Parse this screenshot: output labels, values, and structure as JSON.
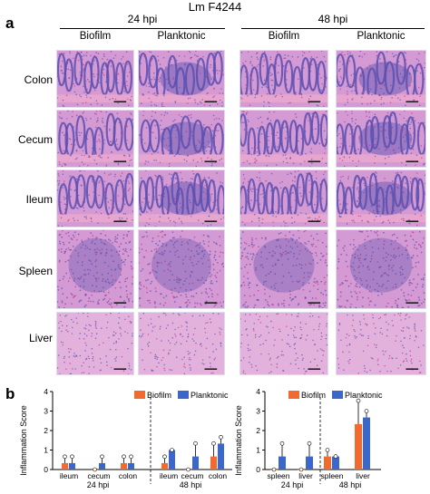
{
  "figure": {
    "strain_title": "Lm F4244",
    "panel_a_letter": "a",
    "panel_b_letter": "b",
    "timepoints": [
      "24 hpi",
      "48 hpi"
    ],
    "conditions": [
      "Biofilm",
      "Planktonic"
    ],
    "tissues": [
      "Colon",
      "Cecum",
      "Ileum",
      "Spleen",
      "Liver"
    ]
  },
  "colors": {
    "biofilm": "#f26a2e",
    "planktonic": "#3a67c9",
    "tissue_pink": "#d49ad3",
    "tissue_purple": "#5a4fb0"
  },
  "chart_data": [
    {
      "type": "bar",
      "ylabel": "Inflammation Score",
      "ylim": [
        0,
        4
      ],
      "yticks": [
        0,
        1,
        2,
        3,
        4
      ],
      "legend": "top",
      "series_names": [
        "Biofilm",
        "Planktonic"
      ],
      "groups": [
        {
          "timepoint": "24 hpi",
          "categories": [
            "ileum",
            "cecum",
            "colon"
          ]
        },
        {
          "timepoint": "48 hpi",
          "categories": [
            "ileum",
            "cecum",
            "colon"
          ]
        }
      ],
      "series": [
        {
          "name": "Biofilm",
          "values": [
            0.33,
            0.0,
            0.33,
            0.33,
            0.0,
            0.67
          ],
          "errors": [
            0.33,
            0,
            0.33,
            0.33,
            0,
            0.67
          ]
        },
        {
          "name": "Planktonic",
          "values": [
            0.33,
            0.33,
            0.33,
            1.0,
            0.67,
            1.33
          ],
          "errors": [
            0.33,
            0.33,
            0.33,
            0,
            0.67,
            0.33
          ]
        }
      ]
    },
    {
      "type": "bar",
      "ylabel": "Inflammation Score",
      "ylim": [
        0,
        4
      ],
      "yticks": [
        0,
        1,
        2,
        3,
        4
      ],
      "legend": "top",
      "series_names": [
        "Biofilm",
        "Planktonic"
      ],
      "groups": [
        {
          "timepoint": "24 hpi",
          "categories": [
            "spleen",
            "liver"
          ]
        },
        {
          "timepoint": "48 hpi",
          "categories": [
            "spleen",
            "liver"
          ]
        }
      ],
      "series": [
        {
          "name": "Biofilm",
          "values": [
            0.0,
            0.0,
            0.67,
            2.33
          ],
          "errors": [
            0,
            0,
            0.33,
            1.2
          ]
        },
        {
          "name": "Planktonic",
          "values": [
            0.67,
            0.67,
            0.67,
            2.67
          ],
          "errors": [
            0.67,
            0.67,
            0,
            0.33
          ]
        }
      ]
    }
  ]
}
